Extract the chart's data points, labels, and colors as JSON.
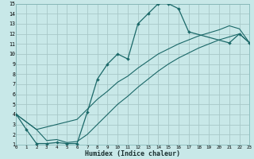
{
  "xlabel": "Humidex (Indice chaleur)",
  "bg_color": "#c8e8e8",
  "grid_color": "#a8c8c8",
  "line_color": "#1a6868",
  "xlim": [
    0,
    23
  ],
  "ylim": [
    1,
    15
  ],
  "xticks": [
    0,
    1,
    2,
    3,
    4,
    5,
    6,
    7,
    8,
    9,
    10,
    11,
    12,
    13,
    14,
    15,
    16,
    17,
    18,
    19,
    20,
    21,
    22,
    23
  ],
  "yticks": [
    1,
    2,
    3,
    4,
    5,
    6,
    7,
    8,
    9,
    10,
    11,
    12,
    13,
    14,
    15
  ],
  "curve1_x": [
    0,
    1,
    2,
    3,
    4,
    5,
    6,
    7,
    8,
    9,
    10,
    11,
    12,
    13,
    14,
    15,
    16,
    17,
    21,
    22,
    23
  ],
  "curve1_y": [
    4,
    2.5,
    1.1,
    1.1,
    1.2,
    1.1,
    1.1,
    4.2,
    7.5,
    9.0,
    10.0,
    9.5,
    13.0,
    14.0,
    15.0,
    15.0,
    14.5,
    12.2,
    11.1,
    12.0,
    11.1
  ],
  "curve2_x": [
    0,
    2,
    6,
    7,
    8,
    9,
    10,
    11,
    12,
    13,
    14,
    15,
    16,
    17,
    18,
    19,
    20,
    21,
    22,
    23
  ],
  "curve2_y": [
    4,
    2.5,
    3.5,
    4.5,
    5.5,
    6.3,
    7.2,
    7.8,
    8.6,
    9.3,
    10.0,
    10.5,
    11.0,
    11.4,
    11.8,
    12.1,
    12.4,
    12.8,
    12.5,
    11.1
  ],
  "curve3_x": [
    0,
    2,
    3,
    4,
    5,
    6,
    7,
    8,
    9,
    10,
    11,
    12,
    13,
    14,
    15,
    16,
    17,
    18,
    19,
    20,
    21,
    22,
    23
  ],
  "curve3_y": [
    4,
    2.5,
    1.4,
    1.5,
    1.2,
    1.3,
    2.0,
    3.0,
    4.0,
    5.0,
    5.8,
    6.7,
    7.5,
    8.3,
    9.0,
    9.6,
    10.1,
    10.6,
    11.0,
    11.4,
    11.7,
    12.0,
    11.1
  ]
}
